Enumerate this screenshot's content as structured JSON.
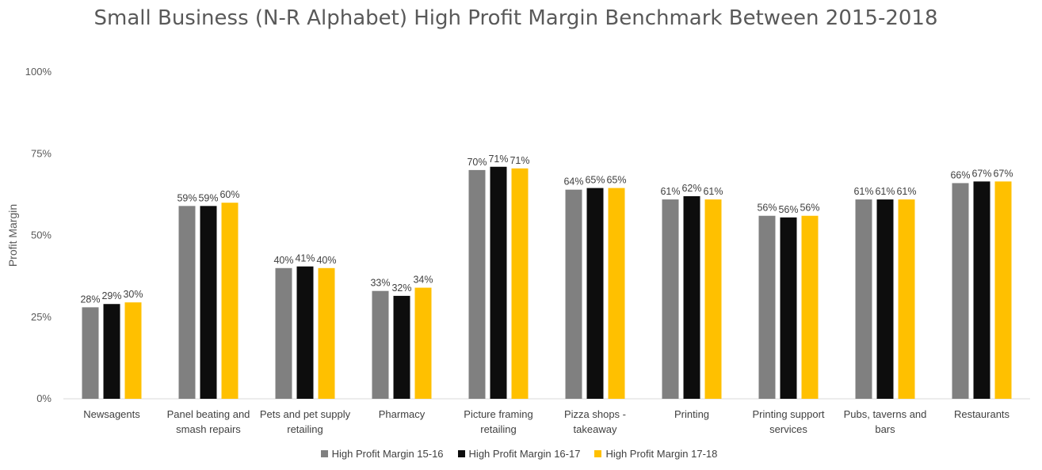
{
  "chart_data": {
    "type": "bar",
    "title": "Small Business (N-R Alphabet) High Profit Margin Benchmark Between 2015-2018",
    "ylabel": "Profit Margin",
    "xlabel": "",
    "ylim": [
      0,
      1
    ],
    "yticks": [
      "0%",
      "25%",
      "50%",
      "75%",
      "100%"
    ],
    "ytick_values": [
      0,
      0.25,
      0.5,
      0.75,
      1.0
    ],
    "grid": false,
    "legend_position": "bottom",
    "categories": [
      [
        "Newsagents"
      ],
      [
        "Panel beating and",
        "smash repairs"
      ],
      [
        "Pets and pet supply",
        "retailing"
      ],
      [
        "Pharmacy"
      ],
      [
        "Picture framing",
        "retailing"
      ],
      [
        "Pizza shops -",
        "takeaway"
      ],
      [
        "Printing"
      ],
      [
        "Printing support",
        "services"
      ],
      [
        "Pubs, taverns and",
        "bars"
      ],
      [
        "Restaurants"
      ]
    ],
    "series": [
      {
        "name": "High Profit Margin 15-16",
        "color": "#808080",
        "values": [
          0.28,
          0.59,
          0.4,
          0.33,
          0.7,
          0.64,
          0.61,
          0.56,
          0.61,
          0.66
        ],
        "labels": [
          "28%",
          "59%",
          "40%",
          "33%",
          "70%",
          "64%",
          "61%",
          "56%",
          "61%",
          "66%"
        ]
      },
      {
        "name": "High Profit Margin 16-17",
        "color": "#0d0d0d",
        "values": [
          0.29,
          0.59,
          0.405,
          0.315,
          0.71,
          0.645,
          0.62,
          0.555,
          0.61,
          0.665
        ],
        "labels": [
          "29%",
          "59%",
          "41%",
          "32%",
          "71%",
          "65%",
          "62%",
          "56%",
          "61%",
          "67%"
        ]
      },
      {
        "name": "High Profit Margin 17-18",
        "color": "#ffc000",
        "values": [
          0.295,
          0.6,
          0.4,
          0.34,
          0.705,
          0.645,
          0.61,
          0.56,
          0.61,
          0.665
        ],
        "labels": [
          "30%",
          "60%",
          "40%",
          "34%",
          "71%",
          "65%",
          "61%",
          "56%",
          "61%",
          "67%"
        ]
      }
    ]
  }
}
